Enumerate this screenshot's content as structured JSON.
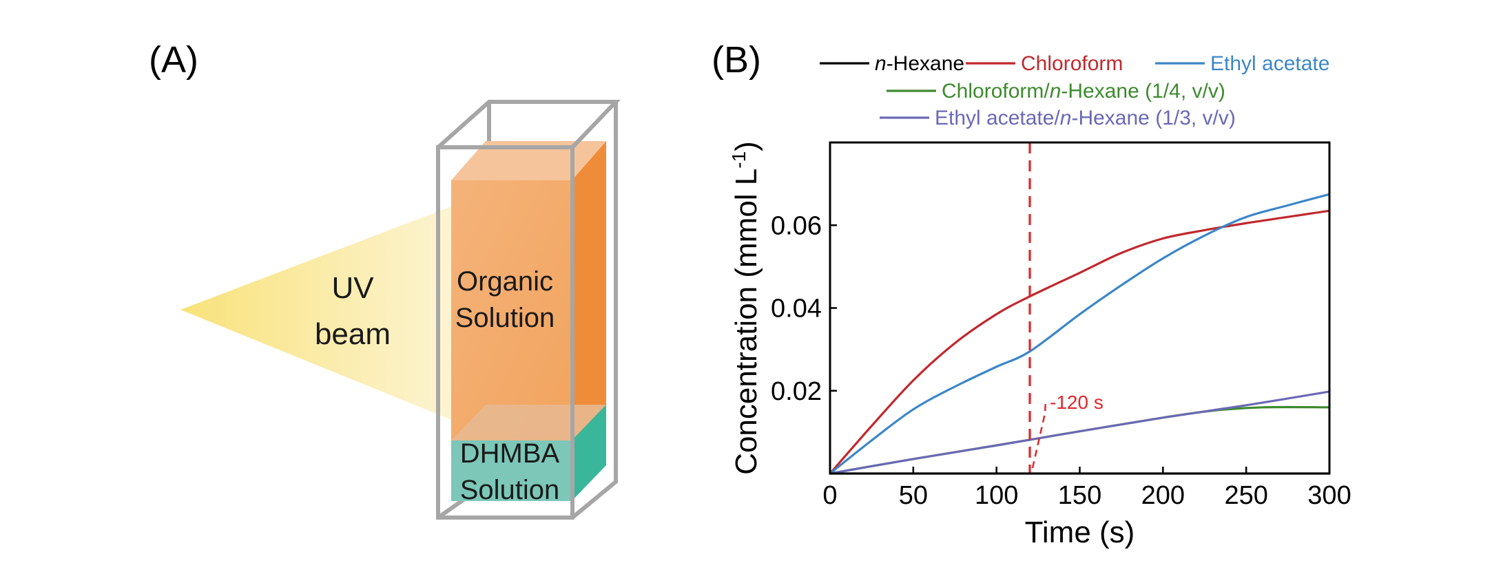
{
  "panels": {
    "a_label": "(A)",
    "b_label": "(B)"
  },
  "illustration": {
    "beam_line1": "UV",
    "beam_line2": "beam",
    "organic_line1": "Organic",
    "organic_line2": "Solution",
    "dhmba_line1": "DHMBA",
    "dhmba_line2": "Solution",
    "colors": {
      "beam": "#f8e58a",
      "organic_front": "#f2a45e",
      "organic_side": "#ef8c3a",
      "organic_top": "#f6c49a",
      "dhmba_front": "#7cc7b8",
      "dhmba_side": "#3ab79a",
      "frame": "#a6a6a6"
    }
  },
  "chart_data": {
    "type": "line",
    "xlabel": "Time (s)",
    "ylabel_main": "Concentration (mmol L",
    "ylabel_sup": "-1",
    "ylabel_close": ")",
    "xlim": [
      0,
      300
    ],
    "ylim": [
      0,
      0.08
    ],
    "xticks": [
      0,
      50,
      100,
      150,
      200,
      250,
      300
    ],
    "xtick_labels": [
      "0",
      "50",
      "100",
      "150",
      "200",
      "250",
      "300"
    ],
    "yticks": [
      0.02,
      0.04,
      0.06
    ],
    "ytick_labels": [
      "0.02",
      "0.04",
      "0.06"
    ],
    "series": [
      {
        "name_italic": "n",
        "name_rest": "-Hexane",
        "color": "#000000",
        "x": [
          0,
          300
        ],
        "y": [
          0,
          0
        ]
      },
      {
        "name_italic": "",
        "name_rest": "Chloroform",
        "color": "#c0282d",
        "x": [
          0,
          25,
          50,
          75,
          100,
          120,
          150,
          175,
          200,
          225,
          250,
          275,
          300
        ],
        "y": [
          0,
          0.0115,
          0.0225,
          0.0315,
          0.0385,
          0.0428,
          0.0485,
          0.0533,
          0.0568,
          0.0588,
          0.0605,
          0.062,
          0.0635
        ]
      },
      {
        "name_italic": "",
        "name_rest": "Ethyl acetate",
        "color": "#3b86c8",
        "x": [
          0,
          25,
          50,
          75,
          100,
          120,
          150,
          175,
          200,
          225,
          250,
          275,
          300
        ],
        "y": [
          0,
          0.008,
          0.0155,
          0.021,
          0.0258,
          0.0295,
          0.0385,
          0.0455,
          0.052,
          0.0575,
          0.062,
          0.0648,
          0.0675
        ]
      },
      {
        "name_italic": "",
        "name_rest": "Chloroform/",
        "name_italic2": "n",
        "name_rest2": "-Hexane (1/4, v/v)",
        "color": "#3d8a2e",
        "x": [
          0,
          50,
          100,
          150,
          200,
          230,
          260,
          300
        ],
        "y": [
          0,
          0.0035,
          0.0068,
          0.0102,
          0.0135,
          0.0152,
          0.016,
          0.016
        ]
      },
      {
        "name_italic": "",
        "name_rest": "Ethyl acetate/",
        "name_italic2": "n",
        "name_rest2": "-Hexane (1/3, v/v)",
        "color": "#6a68b5",
        "x": [
          0,
          50,
          100,
          150,
          200,
          250,
          300
        ],
        "y": [
          0,
          0.0035,
          0.0068,
          0.0102,
          0.0135,
          0.0165,
          0.0198
        ]
      }
    ],
    "vline": {
      "x": 120,
      "color": "#e0262a"
    },
    "annotation": {
      "text": "120 s",
      "color": "#e0262a",
      "x": 132,
      "y": 0.0175
    },
    "legend_placement": "top"
  }
}
